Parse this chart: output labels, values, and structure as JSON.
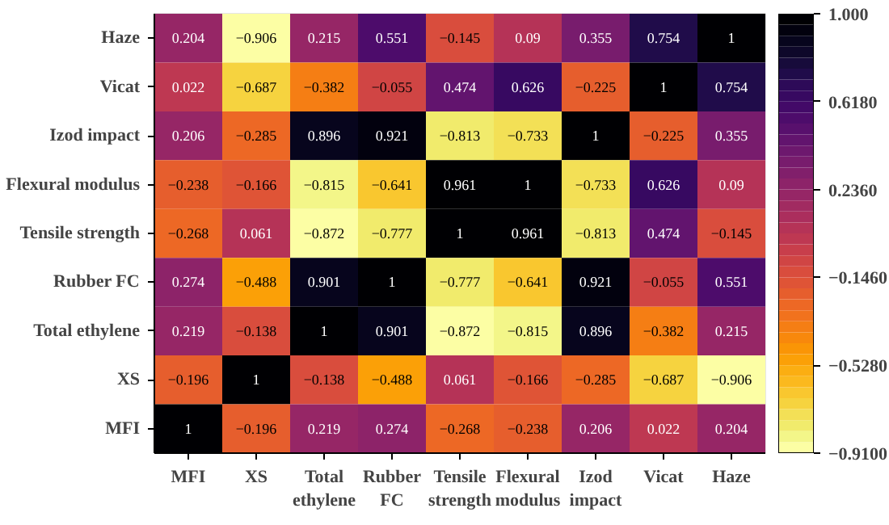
{
  "chart_data": {
    "type": "heatmap",
    "categories": [
      "MFI",
      "XS",
      "Total ethylene",
      "Rubber FC",
      "Tensile strength",
      "Flexural modulus",
      "Izod impact",
      "Vicat",
      "Haze"
    ],
    "y_categories": [
      "Haze",
      "Vicat",
      "Izod impact",
      "Flexural modulus",
      "Tensile strength",
      "Rubber FC",
      "Total ethylene",
      "XS",
      "MFI"
    ],
    "cells": [
      [
        0.204,
        -0.906,
        0.215,
        0.551,
        -0.145,
        0.09,
        0.355,
        0.754,
        1
      ],
      [
        0.022,
        -0.687,
        -0.382,
        -0.055,
        0.474,
        0.626,
        -0.225,
        1,
        0.754
      ],
      [
        0.206,
        -0.285,
        0.896,
        0.921,
        -0.813,
        -0.733,
        1,
        -0.225,
        0.355
      ],
      [
        -0.238,
        -0.166,
        -0.815,
        -0.641,
        0.961,
        1,
        -0.733,
        0.626,
        0.09
      ],
      [
        -0.268,
        0.061,
        -0.872,
        -0.777,
        1,
        0.961,
        -0.813,
        0.474,
        -0.145
      ],
      [
        0.274,
        -0.488,
        0.901,
        1,
        -0.777,
        -0.641,
        0.921,
        -0.055,
        0.551
      ],
      [
        0.219,
        -0.138,
        1,
        0.901,
        -0.872,
        -0.815,
        0.896,
        -0.382,
        0.215
      ],
      [
        -0.196,
        1,
        -0.138,
        -0.488,
        0.061,
        -0.166,
        -0.285,
        -0.687,
        -0.906
      ],
      [
        1,
        -0.196,
        0.219,
        0.274,
        -0.268,
        -0.238,
        0.206,
        0.022,
        0.204
      ]
    ],
    "clim": [
      -0.91,
      1.0
    ],
    "cticks": [
      {
        "value": 1.0,
        "label": "1.000"
      },
      {
        "value": 0.618,
        "label": "0.6180"
      },
      {
        "value": 0.236,
        "label": "0.2360"
      },
      {
        "value": -0.146,
        "label": "−0.1460"
      },
      {
        "value": -0.528,
        "label": "−0.5280"
      },
      {
        "value": -0.91,
        "label": "−0.9100"
      }
    ],
    "data_labels": true
  }
}
